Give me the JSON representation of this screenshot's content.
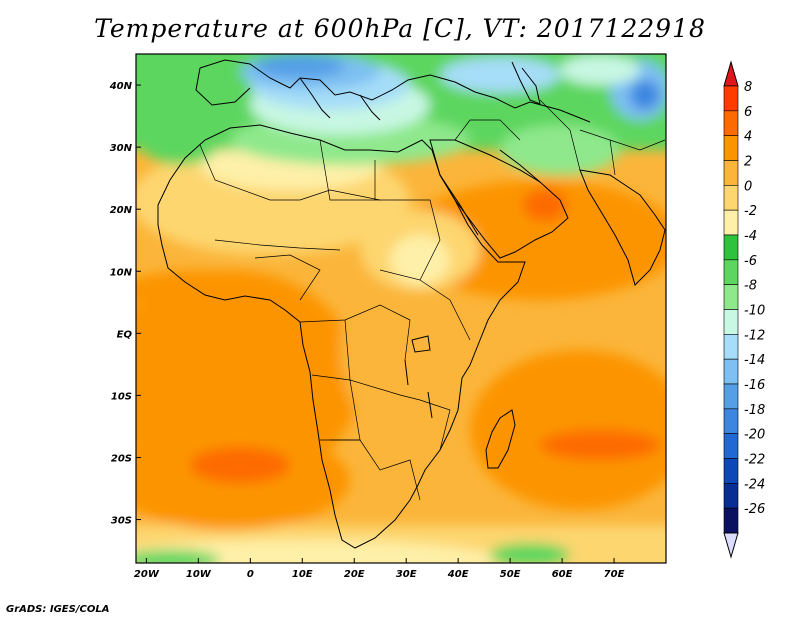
{
  "title": "Temperature at 600hPa [C], VT: 2017122918",
  "credit": "GrADS: IGES/COLA",
  "map": {
    "projection": "lat-lon",
    "lon_range": [
      -22,
      80
    ],
    "lat_range": [
      -37,
      45
    ],
    "lat_ticks": [
      "40N",
      "30N",
      "20N",
      "10N",
      "EQ",
      "10S",
      "20S",
      "30S"
    ],
    "lat_tick_values": [
      40,
      30,
      20,
      10,
      0,
      -10,
      -20,
      -30
    ],
    "lon_ticks": [
      "20W",
      "10W",
      "0",
      "10E",
      "20E",
      "30E",
      "40E",
      "50E",
      "60E",
      "70E"
    ],
    "lon_tick_values": [
      -20,
      -10,
      0,
      10,
      20,
      30,
      40,
      50,
      60,
      70
    ]
  },
  "colorbar": {
    "labels": [
      "8",
      "6",
      "4",
      "2",
      "0",
      "-2",
      "-4",
      "-6",
      "-8",
      "-10",
      "-12",
      "-14",
      "-16",
      "-18",
      "-20",
      "-22",
      "-24",
      "-26"
    ],
    "colors": [
      "#e0141b",
      "#ff3c00",
      "#fd6a00",
      "#fc9400",
      "#fbb53a",
      "#fdd670",
      "#fef0a8",
      "#2fc23d",
      "#5dd65f",
      "#8fe88c",
      "#c8f7e3",
      "#a6ddf8",
      "#7ec0f2",
      "#559fe7",
      "#3c86e0",
      "#2168d4",
      "#0d47b8",
      "#062e94",
      "#0a1160",
      "#dcdcff"
    ]
  },
  "field_colors": {
    "warm4": "#fc9400",
    "warm2": "#fbb53a",
    "warm0": "#fdd670",
    "cool2": "#fef0a8",
    "green_dark": "#2fc23d",
    "green_mid": "#5dd65f",
    "green_light": "#8fe88c",
    "blue_light": "#a6ddf8",
    "blue_mid": "#559fe7",
    "blue_dark": "#2168d4",
    "hot": "#fd6a00",
    "hotter": "#ff3c00"
  }
}
